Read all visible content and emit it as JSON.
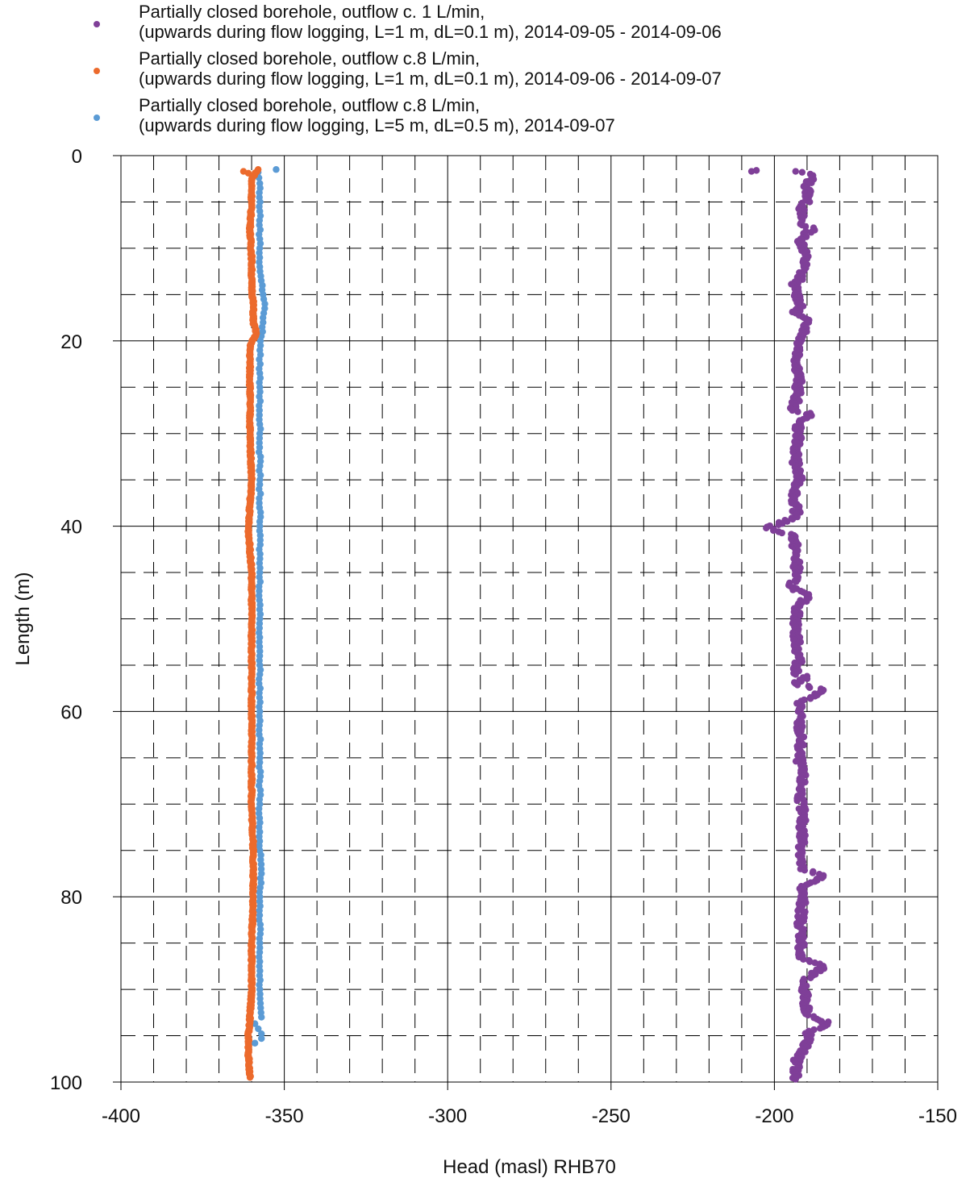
{
  "chart_data": {
    "type": "scatter",
    "title": "",
    "xlabel": "Head (masl) RHB70",
    "ylabel": "Length (m)",
    "xlim": [
      -400,
      -150
    ],
    "ylim": [
      100,
      0
    ],
    "y_inverted": true,
    "x_ticks": [
      "-400",
      "-350",
      "-300",
      "-250",
      "-200",
      "-150"
    ],
    "y_ticks": [
      "0",
      "20",
      "40",
      "60",
      "80",
      "100"
    ],
    "grid": "major solid, minor dashed",
    "legend_position": "top",
    "series": [
      {
        "name_line1": "Partially closed borehole, outflow c. 1 L/min,",
        "name_line2": "(upwards during flow logging, L=1 m, dL=0.1 m), 2014-09-05 - 2014-09-06",
        "color": "#7f3f98",
        "points": [
          [
            -207,
            1.7
          ],
          [
            -205.5,
            1.6
          ],
          [
            -193.5,
            1.7
          ],
          [
            -191.5,
            1.8
          ],
          [
            -189,
            2.0
          ],
          [
            -188.5,
            2.3
          ],
          [
            -190,
            3.2
          ],
          [
            -189.5,
            4.5
          ],
          [
            -192,
            6
          ],
          [
            -191.5,
            7.5
          ],
          [
            -188,
            7.8
          ],
          [
            -192,
            9
          ],
          [
            -190.5,
            10.5
          ],
          [
            -191,
            12
          ],
          [
            -192.5,
            13.5
          ],
          [
            -194,
            14
          ],
          [
            -192,
            16
          ],
          [
            -193.5,
            17
          ],
          [
            -189.5,
            18
          ],
          [
            -192,
            20
          ],
          [
            -193,
            22
          ],
          [
            -192.5,
            24
          ],
          [
            -193,
            26
          ],
          [
            -194.5,
            27.5
          ],
          [
            -189,
            27.8
          ],
          [
            -192.5,
            29
          ],
          [
            -193,
            31
          ],
          [
            -193.5,
            33
          ],
          [
            -192.5,
            35
          ],
          [
            -194,
            37
          ],
          [
            -193,
            39
          ],
          [
            -202.5,
            40.2
          ],
          [
            -194,
            41
          ],
          [
            -193.5,
            43
          ],
          [
            -193,
            45
          ],
          [
            -195,
            46.5
          ],
          [
            -190,
            47.5
          ],
          [
            -193,
            49
          ],
          [
            -193.5,
            51
          ],
          [
            -193,
            53
          ],
          [
            -192.5,
            54.5
          ],
          [
            -193.5,
            56
          ],
          [
            -190,
            56.2
          ],
          [
            -193.5,
            57
          ],
          [
            -185,
            57.7
          ],
          [
            -192,
            59
          ],
          [
            -192.5,
            61
          ],
          [
            -192,
            63
          ],
          [
            -192.5,
            65
          ],
          [
            -191.5,
            67
          ],
          [
            -192,
            69
          ],
          [
            -191.5,
            71
          ],
          [
            -191.5,
            73
          ],
          [
            -191.5,
            75
          ],
          [
            -192,
            77
          ],
          [
            -185,
            77.7
          ],
          [
            -191.5,
            79
          ],
          [
            -191.5,
            81
          ],
          [
            -192,
            83
          ],
          [
            -191.5,
            85
          ],
          [
            -192.5,
            86.5
          ],
          [
            -185,
            87.5
          ],
          [
            -191,
            89
          ],
          [
            -190.5,
            91
          ],
          [
            -190,
            92.5
          ],
          [
            -187,
            93.2
          ],
          [
            -185,
            93.7
          ],
          [
            -183.5,
            93.5
          ],
          [
            -186,
            94.2
          ],
          [
            -189.5,
            94.5
          ],
          [
            -190,
            95.5
          ],
          [
            -191,
            96.5
          ],
          [
            -193,
            97.5
          ],
          [
            -193.5,
            99
          ],
          [
            -193.5,
            99.7
          ]
        ]
      },
      {
        "name_line1": "Partially closed borehole, outflow c.8 L/min,",
        "name_line2": "(upwards during flow logging, L=1 m, dL=0.1 m), 2014-09-06 - 2014-09-07",
        "color": "#ec6a2c",
        "points": [
          [
            -362.5,
            1.7
          ],
          [
            -361,
            1.9
          ],
          [
            -358,
            1.5
          ],
          [
            -360,
            2.5
          ],
          [
            -360,
            5
          ],
          [
            -360.5,
            8
          ],
          [
            -360,
            11
          ],
          [
            -360,
            14
          ],
          [
            -359.5,
            16
          ],
          [
            -359.5,
            18
          ],
          [
            -358.5,
            19.2
          ],
          [
            -360.5,
            20.5
          ],
          [
            -360.5,
            25
          ],
          [
            -360.5,
            30
          ],
          [
            -360,
            35
          ],
          [
            -361,
            40.2
          ],
          [
            -360,
            45
          ],
          [
            -360,
            50
          ],
          [
            -360,
            55
          ],
          [
            -360,
            60
          ],
          [
            -360,
            65
          ],
          [
            -360,
            70
          ],
          [
            -359.5,
            75
          ],
          [
            -359.5,
            80
          ],
          [
            -360,
            85
          ],
          [
            -360,
            90
          ],
          [
            -360.5,
            93
          ],
          [
            -361,
            95
          ],
          [
            -361,
            97
          ],
          [
            -360.5,
            99.5
          ]
        ]
      },
      {
        "name_line1": "Partially closed borehole, outflow c.8 L/min,",
        "name_line2": "(upwards during flow logging, L=5 m, dL=0.5 m), 2014-09-07",
        "color": "#5b9bd5",
        "points": [
          [
            -352.5,
            1.5
          ],
          [
            -358,
            1.8
          ],
          [
            -357.5,
            3
          ],
          [
            -357.5,
            6
          ],
          [
            -357.5,
            9
          ],
          [
            -357.5,
            12
          ],
          [
            -356.5,
            15
          ],
          [
            -356,
            16.5
          ],
          [
            -356.5,
            18
          ],
          [
            -357.5,
            21
          ],
          [
            -357.5,
            25
          ],
          [
            -357.5,
            30
          ],
          [
            -357.5,
            35
          ],
          [
            -357.5,
            40
          ],
          [
            -357.5,
            45
          ],
          [
            -357.5,
            50
          ],
          [
            -357.5,
            55
          ],
          [
            -357.5,
            60
          ],
          [
            -357.5,
            65
          ],
          [
            -357.5,
            70
          ],
          [
            -357.5,
            75
          ],
          [
            -357,
            77.5
          ],
          [
            -357.5,
            80
          ],
          [
            -357.5,
            85
          ],
          [
            -357.5,
            90
          ],
          [
            -357,
            93
          ],
          [
            -359,
            93.7
          ],
          [
            -357,
            94.8
          ],
          [
            -357,
            95.3
          ],
          [
            -359,
            95.8
          ]
        ]
      }
    ]
  }
}
